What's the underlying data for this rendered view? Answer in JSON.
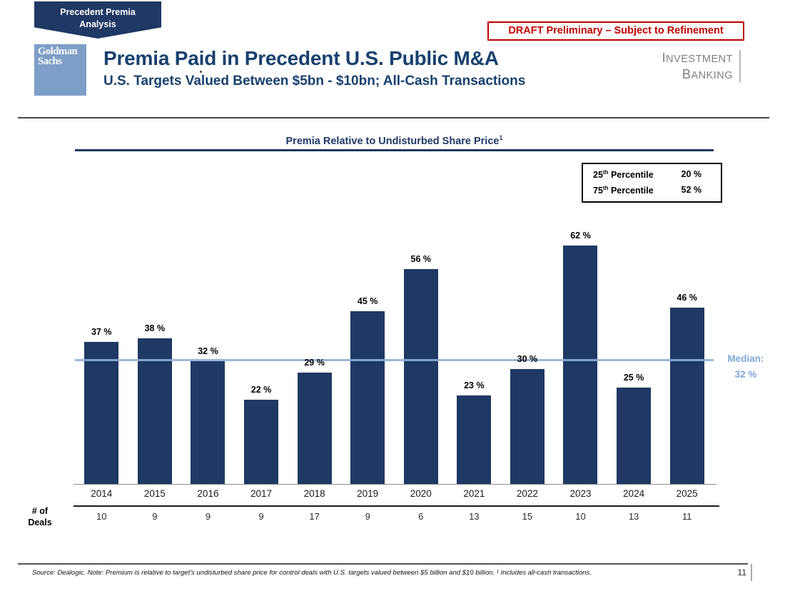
{
  "tab_banner": {
    "line1": "Precedent Premia",
    "line2": "Analysis"
  },
  "draft_label": "DRAFT Preliminary – Subject to Refinement",
  "logo": {
    "line1": "Goldman",
    "line2": "Sachs"
  },
  "header": {
    "title": "Premia Paid in Precedent U.S. Public M&A",
    "subtitle": "U.S. Targets Valued Between $5bn - $10bn; All-Cash Transactions"
  },
  "division": {
    "line1": "Investment",
    "line2": "Banking"
  },
  "chart_data": {
    "type": "bar",
    "title": "Premia Relative to Undisturbed Share Price",
    "title_superscript": "1",
    "categories": [
      "2014",
      "2015",
      "2016",
      "2017",
      "2018",
      "2019",
      "2020",
      "2021",
      "2022",
      "2023",
      "2024",
      "2025"
    ],
    "values": [
      37,
      38,
      32,
      22,
      29,
      45,
      56,
      23,
      30,
      62,
      25,
      46
    ],
    "value_suffix": " %",
    "ylim": [
      0,
      85
    ],
    "grid": false,
    "bar_color": "#1F3864",
    "median": {
      "value": 32,
      "label_line1": "Median:",
      "label_line2": "32 %",
      "color": "#8FAFDB"
    },
    "percentiles": [
      {
        "num": "25",
        "sup": "th",
        "rest": " Percentile",
        "value": "20 %"
      },
      {
        "num": "75",
        "sup": "th",
        "rest": " Percentile",
        "value": "52 %"
      }
    ],
    "deals_row": {
      "label_line1": "# of",
      "label_line2": "Deals",
      "values": [
        10,
        9,
        9,
        9,
        17,
        9,
        6,
        13,
        15,
        10,
        13,
        11
      ]
    }
  },
  "footer": {
    "source": "Source: Dealogic. Note: Premium is relative to target's undisturbed share price for control deals with U.S. targets valued between $5 billion and $10 billion. ¹ Includes all-cash transactions.",
    "page": "11"
  }
}
